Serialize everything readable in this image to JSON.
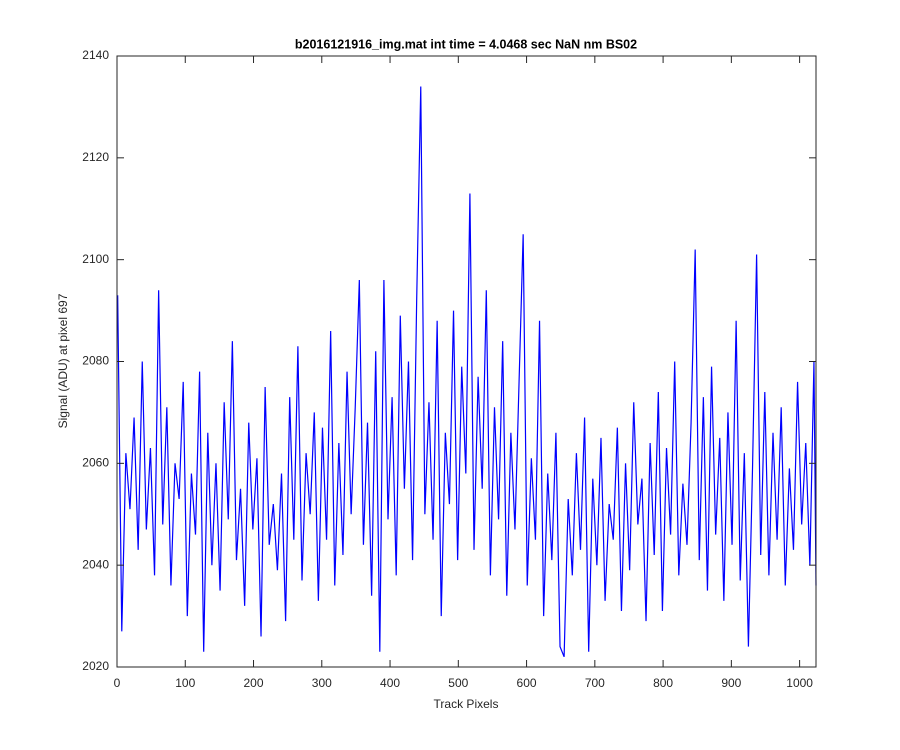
{
  "chart_data": {
    "type": "line",
    "title": "b2016121916_img.mat int time = 4.0468 sec  NaN nm BS02",
    "xlabel": "Track Pixels",
    "ylabel": "Signal (ADU) at pixel 697",
    "color": "#0000ff",
    "xlim": [
      0,
      1024
    ],
    "ylim": [
      2020,
      2140
    ],
    "xticks": [
      0,
      100,
      200,
      300,
      400,
      500,
      600,
      700,
      800,
      900,
      1000
    ],
    "yticks": [
      2020,
      2040,
      2060,
      2080,
      2100,
      2120,
      2140
    ],
    "x": [
      1,
      7,
      13,
      19,
      25,
      31,
      37,
      43,
      49,
      55,
      61,
      67,
      73,
      79,
      85,
      91,
      97,
      103,
      109,
      115,
      121,
      127,
      133,
      139,
      145,
      151,
      157,
      163,
      169,
      175,
      181,
      187,
      193,
      199,
      205,
      211,
      217,
      223,
      229,
      235,
      241,
      247,
      253,
      259,
      265,
      271,
      277,
      283,
      289,
      295,
      301,
      307,
      313,
      319,
      325,
      331,
      337,
      343,
      349,
      355,
      361,
      367,
      373,
      379,
      385,
      391,
      397,
      403,
      409,
      415,
      421,
      427,
      433,
      439,
      445,
      451,
      457,
      463,
      469,
      475,
      481,
      487,
      493,
      499,
      505,
      511,
      517,
      523,
      529,
      535,
      541,
      547,
      553,
      559,
      565,
      571,
      577,
      583,
      589,
      595,
      601,
      607,
      613,
      619,
      625,
      631,
      637,
      643,
      649,
      655,
      661,
      667,
      673,
      679,
      685,
      691,
      697,
      703,
      709,
      715,
      721,
      727,
      733,
      739,
      745,
      751,
      757,
      763,
      769,
      775,
      781,
      787,
      793,
      799,
      805,
      811,
      817,
      823,
      829,
      835,
      841,
      847,
      853,
      859,
      865,
      871,
      877,
      883,
      889,
      895,
      901,
      907,
      913,
      919,
      925,
      931,
      937,
      943,
      949,
      955,
      961,
      967,
      973,
      979,
      985,
      991,
      997,
      1003,
      1009,
      1015,
      1021,
      1024
    ],
    "values": [
      2093,
      2027,
      2062,
      2051,
      2069,
      2043,
      2080,
      2047,
      2063,
      2038,
      2094,
      2048,
      2071,
      2036,
      2060,
      2053,
      2076,
      2030,
      2058,
      2046,
      2078,
      2023,
      2066,
      2040,
      2060,
      2035,
      2072,
      2049,
      2084,
      2041,
      2055,
      2032,
      2068,
      2047,
      2061,
      2026,
      2075,
      2044,
      2052,
      2039,
      2058,
      2029,
      2073,
      2045,
      2083,
      2037,
      2062,
      2050,
      2070,
      2033,
      2067,
      2045,
      2086,
      2036,
      2064,
      2042,
      2078,
      2050,
      2071,
      2096,
      2044,
      2068,
      2034,
      2082,
      2023,
      2096,
      2049,
      2073,
      2038,
      2089,
      2055,
      2080,
      2041,
      2092,
      2134,
      2050,
      2072,
      2045,
      2088,
      2030,
      2066,
      2052,
      2090,
      2041,
      2079,
      2058,
      2113,
      2043,
      2077,
      2055,
      2094,
      2038,
      2071,
      2049,
      2084,
      2034,
      2066,
      2047,
      2076,
      2105,
      2036,
      2061,
      2045,
      2088,
      2030,
      2058,
      2041,
      2066,
      2024,
      2022,
      2053,
      2038,
      2062,
      2043,
      2069,
      2023,
      2057,
      2040,
      2065,
      2033,
      2052,
      2045,
      2067,
      2031,
      2060,
      2039,
      2072,
      2048,
      2057,
      2029,
      2064,
      2042,
      2074,
      2031,
      2063,
      2046,
      2080,
      2038,
      2056,
      2044,
      2068,
      2102,
      2041,
      2073,
      2035,
      2079,
      2046,
      2065,
      2033,
      2070,
      2044,
      2088,
      2037,
      2062,
      2024,
      2059,
      2101,
      2042,
      2074,
      2038,
      2066,
      2045,
      2071,
      2036,
      2059,
      2043,
      2076,
      2048,
      2064,
      2040,
      2080,
      2036
    ]
  }
}
